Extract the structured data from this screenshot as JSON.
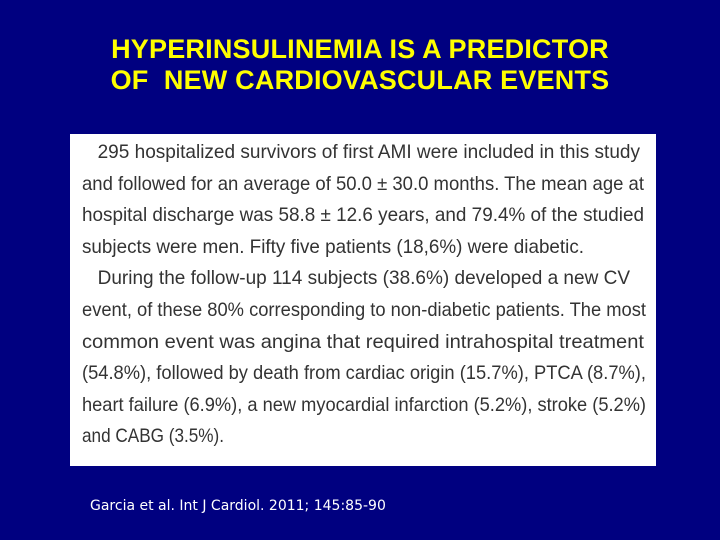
{
  "slide": {
    "title_lines": [
      "HYPERINSULINEMIA IS A PREDICTOR",
      "OF  NEW CARDIOVASCULAR EVENTS"
    ],
    "excerpt_lines": [
      "295 hospitalized survivors of first AMI were included in this study",
      "and followed for an average of 50.0 ± 30.0 months. The mean age at",
      "hospital discharge was 58.8 ± 12.6 years, and 79.4% of the studied",
      "subjects were men. Fifty five patients (18,6%) were diabetic.",
      "During the follow-up 114 subjects (38.6%) developed a new CV",
      "event, of these 80% corresponding to non-diabetic patients. The most",
      "common event was angina that required intrahospital treatment",
      "(54.8%), followed by death from cardiac origin (15.7%), PTCA (8.7%),",
      "heart failure (6.9%), a new myocardial infarction (5.2%), stroke (5.2%)",
      "and CABG (3.5%)."
    ],
    "citation": "Garcia et al. Int J Cardiol. 2011; 145:85-90"
  }
}
